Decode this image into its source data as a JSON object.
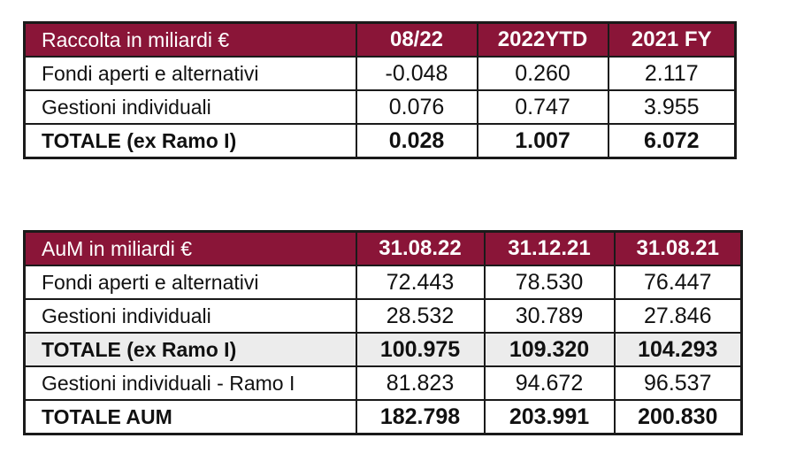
{
  "table1": {
    "header": [
      "Raccolta in miliardi €",
      "08/22",
      "2022YTD",
      "2021 FY"
    ],
    "rows": [
      {
        "label": "Fondi aperti e alternativi",
        "values": [
          "-0.048",
          "0.260",
          "2.117"
        ],
        "bold": false
      },
      {
        "label": "Gestioni individuali",
        "values": [
          "0.076",
          "0.747",
          "3.955"
        ],
        "bold": false
      },
      {
        "label": "TOTALE (ex Ramo I)",
        "values": [
          "0.028",
          "1.007",
          "6.072"
        ],
        "bold": true
      }
    ]
  },
  "table2": {
    "header": [
      "AuM in miliardi €",
      "31.08.22",
      "31.12.21",
      "31.08.21"
    ],
    "rows": [
      {
        "label": "Fondi aperti e alternativi",
        "values": [
          "72.443",
          "78.530",
          "76.447"
        ],
        "bold": false
      },
      {
        "label": "Gestioni individuali",
        "values": [
          "28.532",
          "30.789",
          "27.846"
        ],
        "bold": false
      },
      {
        "label": "TOTALE (ex Ramo I)",
        "values": [
          "100.975",
          "109.320",
          "104.293"
        ],
        "bold": true
      },
      {
        "label": "Gestioni individuali - Ramo I",
        "values": [
          "81.823",
          "94.672",
          "96.537"
        ],
        "bold": false
      },
      {
        "label": "TOTALE AUM",
        "values": [
          "182.798",
          "203.991",
          "200.830"
        ],
        "bold": true
      }
    ]
  },
  "colors": {
    "header_bg": "#8a1538",
    "header_text": "#ffffff",
    "total_shade": "#ececec"
  }
}
